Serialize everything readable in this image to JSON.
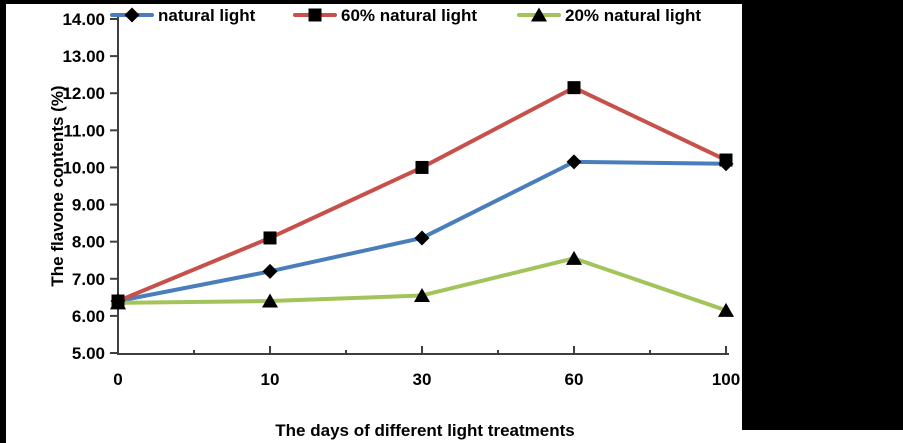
{
  "figure": {
    "background": "#FFFFFF",
    "border_color": "#000000"
  },
  "chart_data": {
    "type": "line",
    "title": "",
    "xlabel": "The days of different light treatments",
    "ylabel": "The flavone contents (%)",
    "categories": [
      "0",
      "10",
      "30",
      "60",
      "100"
    ],
    "y_tick_labels": [
      "5.00",
      "6.00",
      "7.00",
      "8.00",
      "9.00",
      "10.00",
      "11.00",
      "12.00",
      "13.00",
      "14.00"
    ],
    "ylim": [
      5.0,
      14.0
    ],
    "y_tick_step": 1.0,
    "grid": false,
    "legend_position": "top",
    "axis_color": "#3F3F3F",
    "text_color": "#000000",
    "series": [
      {
        "name": "natural light",
        "line_color": "#4A7EBB",
        "marker": "diamond",
        "marker_color": "#000000",
        "values": [
          6.4,
          7.2,
          8.1,
          10.15,
          10.1
        ]
      },
      {
        "name": "60% natural light",
        "line_color": "#C8504B",
        "marker": "square",
        "marker_color": "#000000",
        "values": [
          6.4,
          8.1,
          10.0,
          12.15,
          10.2
        ]
      },
      {
        "name": "20% natural light",
        "line_color": "#A2C45A",
        "marker": "triangle",
        "marker_color": "#000000",
        "values": [
          6.35,
          6.4,
          6.55,
          7.55,
          6.15
        ]
      }
    ]
  }
}
